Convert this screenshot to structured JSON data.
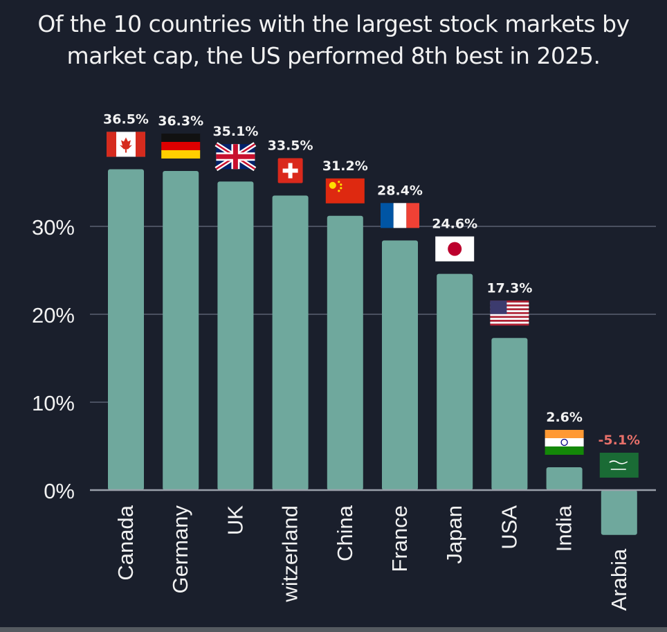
{
  "title": "Of the 10 countries with the largest stock markets by market cap, the US performed 8th best in 2025.",
  "title_lines": [
    "Of the 10 countries with the largest stock markets by",
    "market cap, the US performed 8th best in 2025."
  ],
  "colors": {
    "background": "#1a1f2c",
    "bar": "#6fa89d",
    "grid": "#4a5060",
    "text": "#f2f2f2",
    "negative_label": "#e8706a"
  },
  "chart_data": {
    "type": "bar",
    "title": "Of the 10 countries with the largest stock markets by market cap, the US performed 8th best in 2025.",
    "xlabel": "",
    "ylabel": "",
    "categories": [
      "Canada",
      "Germany",
      "UK",
      "Switzerland",
      "China",
      "France",
      "Japan",
      "USA",
      "India",
      "Saudi Arabia"
    ],
    "category_labels_visible": [
      "Canada",
      "Germany",
      "UK",
      "witzerland",
      "China",
      "France",
      "Japan",
      "USA",
      "India",
      "Arabia"
    ],
    "values": [
      36.5,
      36.3,
      35.1,
      33.5,
      31.2,
      28.4,
      24.6,
      17.3,
      2.6,
      -5.1
    ],
    "value_labels": [
      "36.5%",
      "36.3%",
      "35.1%",
      "33.5%",
      "31.2%",
      "28.4%",
      "24.6%",
      "17.3%",
      "2.6%",
      "-5.1%"
    ],
    "flags": [
      "canada-flag",
      "germany-flag",
      "uk-flag",
      "switzerland-flag",
      "china-flag",
      "france-flag",
      "japan-flag",
      "usa-flag",
      "india-flag",
      "saudi-arabia-flag"
    ],
    "yticks": [
      0,
      10,
      20,
      30
    ],
    "ytick_labels": [
      "0%",
      "10%",
      "20%",
      "30%"
    ],
    "gridlines_at": [
      20,
      30
    ],
    "ylim": [
      -5.1,
      36.5
    ],
    "grid": true,
    "legend": "none"
  }
}
